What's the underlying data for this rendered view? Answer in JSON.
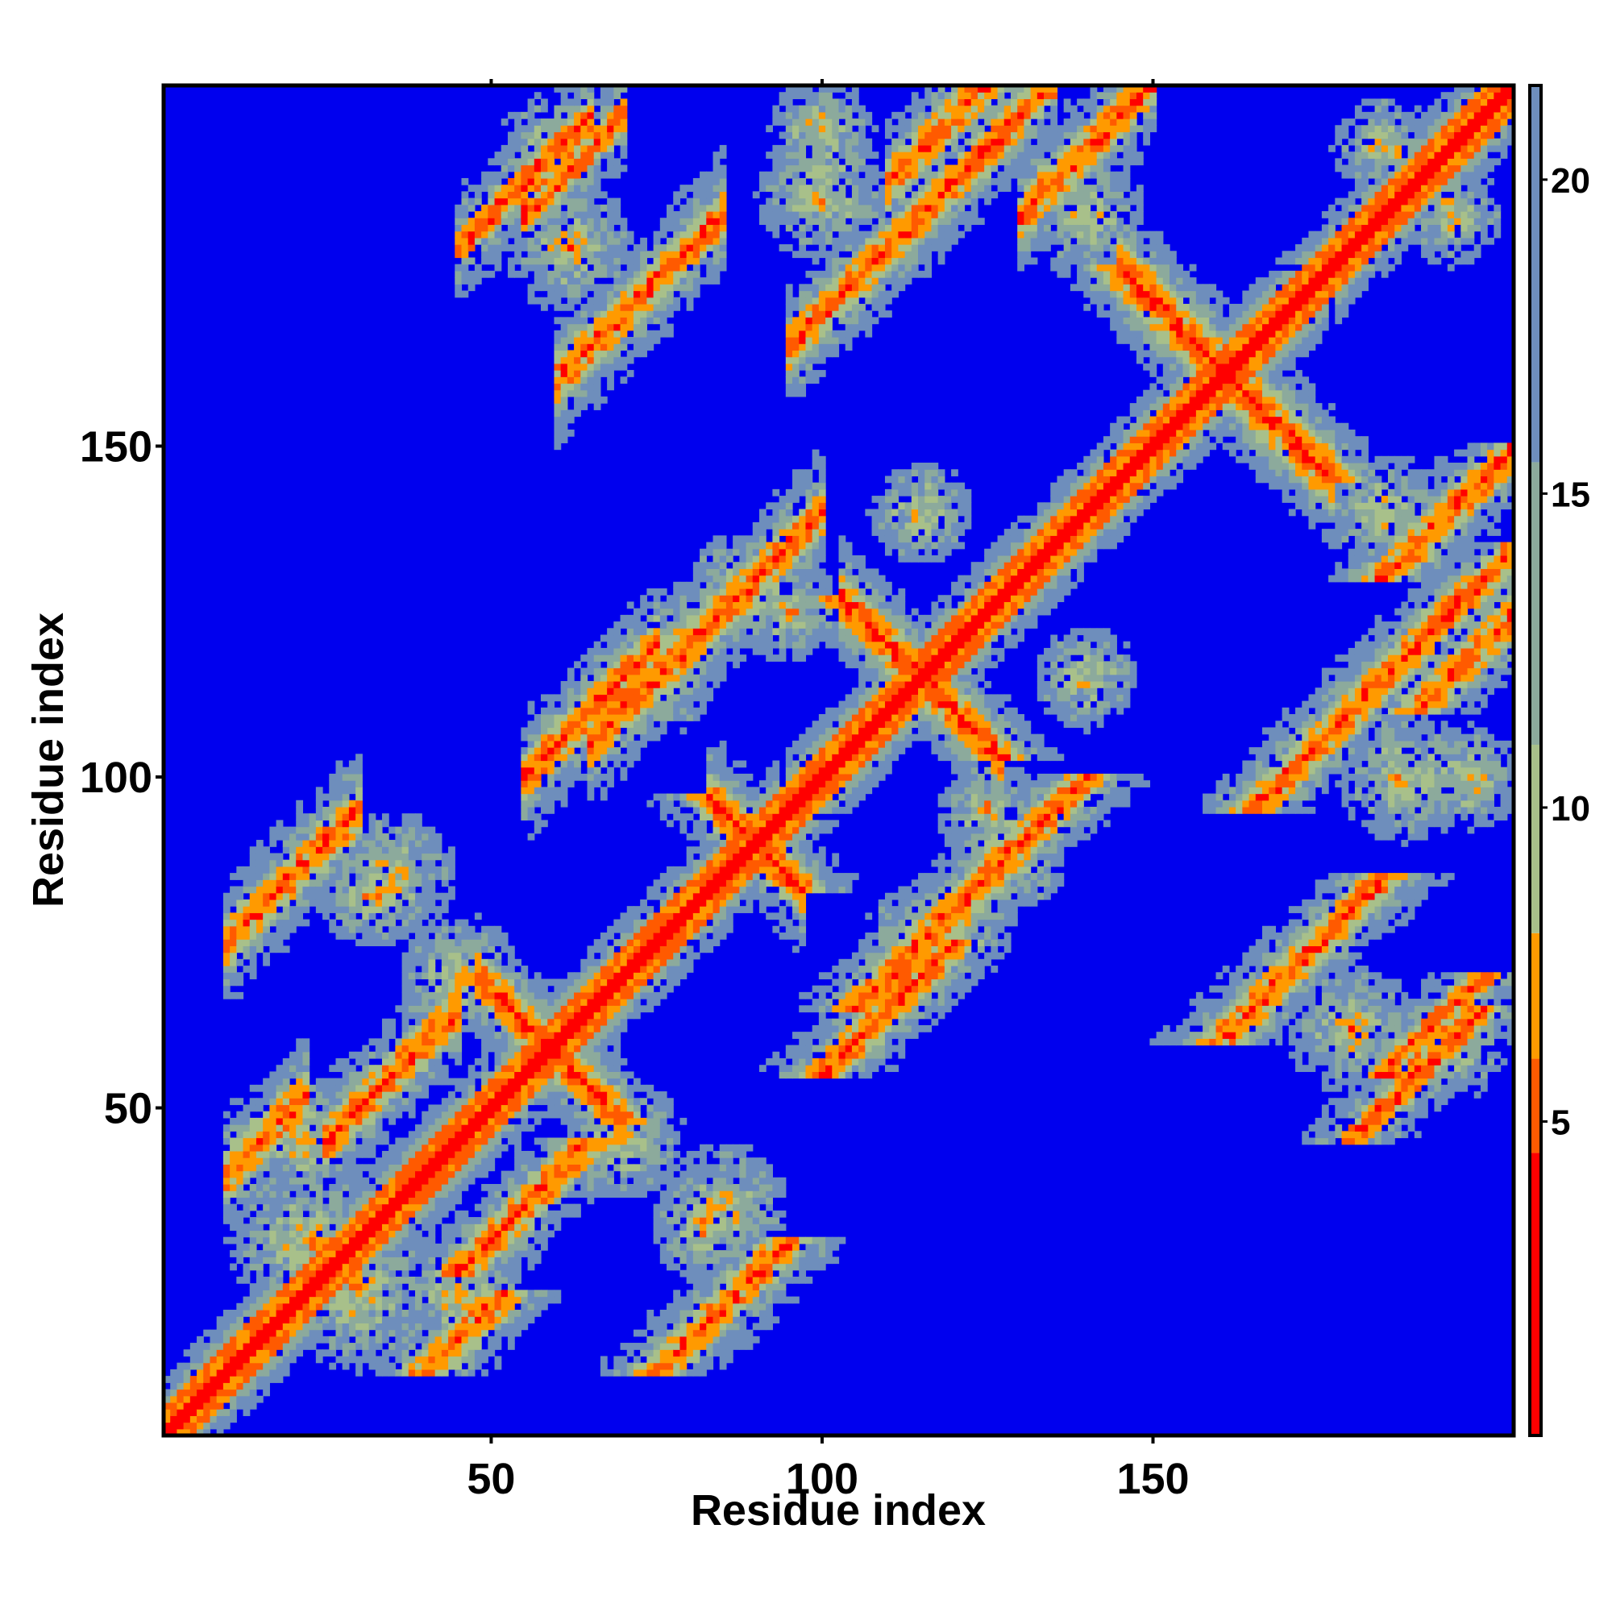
{
  "chart_data": {
    "type": "heatmap",
    "title": "",
    "xlabel": "Residue index",
    "ylabel": "Residue index",
    "n_residues": 204,
    "xlim": [
      1,
      204
    ],
    "ylim": [
      1,
      204
    ],
    "x_ticks": [
      50,
      100,
      150
    ],
    "y_ticks": [
      50,
      100,
      150
    ],
    "x_tick_labels": [
      "50",
      "100",
      "150"
    ],
    "y_tick_labels": [
      "50",
      "100",
      "150"
    ],
    "colorbar": {
      "ticks": [
        5,
        10,
        15,
        20
      ],
      "tick_labels": [
        "5",
        "10",
        "15",
        "20"
      ],
      "range": [
        0,
        21.5
      ]
    },
    "cutoff": 21.5,
    "color_bins": [
      {
        "max": 4.5,
        "color": "#ff0000"
      },
      {
        "max": 6.0,
        "color": "#ff5a00"
      },
      {
        "max": 8.0,
        "color": "#ff9a00"
      },
      {
        "max": 11.0,
        "color": "#a8c08a"
      },
      {
        "max": 15.5,
        "color": "#8caa9c"
      },
      {
        "max": 21.5,
        "color": "#6e8ebc"
      },
      {
        "max": 999,
        "color": "#0000ee"
      }
    ],
    "contact_bands": [
      {
        "type": "diag",
        "i1": 1,
        "i2": 204,
        "width": 9
      },
      {
        "type": "anti",
        "s": 118,
        "i1": 48,
        "i2": 70,
        "width": 3
      },
      {
        "type": "anti",
        "s": 322,
        "i1": 145,
        "i2": 177,
        "width": 4
      },
      {
        "type": "anti",
        "s": 230,
        "i1": 103,
        "i2": 127,
        "width": 3
      },
      {
        "type": "anti",
        "s": 180,
        "i1": 83,
        "i2": 97,
        "width": 3
      },
      {
        "type": "par",
        "d": 30,
        "i1": 10,
        "i2": 22,
        "width": 3
      },
      {
        "type": "par",
        "d": 20,
        "i1": 25,
        "i2": 45,
        "width": 3
      },
      {
        "type": "par",
        "d": 65,
        "i1": 10,
        "i2": 30,
        "width": 3
      },
      {
        "type": "par",
        "d": 45,
        "i1": 55,
        "i2": 75,
        "width": 3
      },
      {
        "type": "par",
        "d": 100,
        "i1": 60,
        "i2": 85,
        "width": 3
      },
      {
        "type": "par",
        "d": 40,
        "i1": 65,
        "i2": 100,
        "width": 3
      },
      {
        "type": "par",
        "d": 70,
        "i1": 95,
        "i2": 130,
        "width": 3
      },
      {
        "type": "par",
        "d": 80,
        "i1": 110,
        "i2": 135,
        "width": 3
      },
      {
        "type": "par",
        "d": 130,
        "i1": 55,
        "i2": 70,
        "width": 2
      },
      {
        "type": "par",
        "d": 135,
        "i1": 45,
        "i2": 65,
        "width": 2
      },
      {
        "type": "par",
        "d": 55,
        "i1": 130,
        "i2": 150,
        "width": 3
      },
      {
        "type": "par",
        "d": 70,
        "i1": 120,
        "i2": 135,
        "width": 2
      }
    ],
    "contact_blobs": [
      {
        "x": 22,
        "y": 30,
        "r": 12
      },
      {
        "x": 45,
        "y": 22,
        "r": 10
      },
      {
        "x": 32,
        "y": 82,
        "r": 8
      },
      {
        "x": 70,
        "y": 45,
        "r": 9
      },
      {
        "x": 85,
        "y": 35,
        "r": 10
      },
      {
        "x": 88,
        "y": 128,
        "r": 9
      },
      {
        "x": 75,
        "y": 115,
        "r": 9
      },
      {
        "x": 120,
        "y": 78,
        "r": 9
      },
      {
        "x": 140,
        "y": 115,
        "r": 8
      },
      {
        "x": 125,
        "y": 95,
        "r": 8
      },
      {
        "x": 100,
        "y": 198,
        "r": 8
      },
      {
        "x": 60,
        "y": 195,
        "r": 9
      },
      {
        "x": 180,
        "y": 62,
        "r": 10
      },
      {
        "x": 188,
        "y": 100,
        "r": 10
      },
      {
        "x": 185,
        "y": 140,
        "r": 9
      },
      {
        "x": 195,
        "y": 185,
        "r": 8
      }
    ]
  }
}
